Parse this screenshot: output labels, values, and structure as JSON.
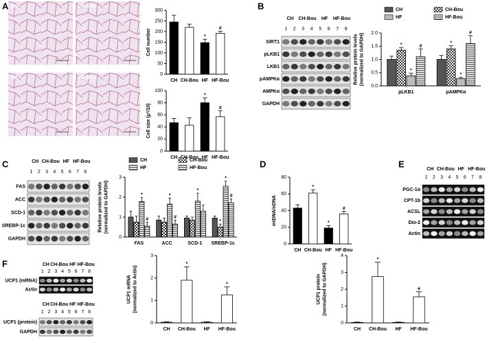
{
  "panels": [
    "A",
    "B",
    "C",
    "D",
    "E",
    "F"
  ],
  "micrographs": [
    "CH",
    "CH-Bou",
    "HF",
    "HF-Bou"
  ],
  "blots": [
    {
      "groups": [
        "CH",
        "CH-Bou",
        "HF",
        "HF-Bou"
      ],
      "lanes": [
        "1",
        "2",
        "3",
        "4",
        "5",
        "6",
        "7",
        "8"
      ],
      "rows": [
        "SIRT1",
        "pLKB1",
        "LKB1",
        "pAMPKα",
        "AMPKα",
        "GAPDH"
      ]
    },
    {
      "groups": [
        "CH",
        "CH-Bou",
        "HF",
        "HF-Bou"
      ],
      "lanes": [
        "1",
        "2",
        "3",
        "4",
        "5",
        "6",
        "7",
        "8"
      ],
      "rows": [
        "FAS",
        "ACC",
        "SCD-1",
        "SREBP-1c",
        "GAPDH"
      ]
    },
    {
      "groups": [
        "CH",
        "CH-Bou",
        "HF",
        "HF-Bou"
      ],
      "lanes": [
        "1",
        "2",
        "3",
        "4",
        "5",
        "6",
        "7",
        "8"
      ],
      "rows": [
        "PGC-1α",
        "CPT-1b",
        "ACSL",
        "Dio-2",
        "Actin"
      ]
    },
    {
      "groups": [
        "CH",
        "CH-Bou",
        "HF",
        "HF-Bou"
      ],
      "lanes": [
        "1",
        "2",
        "3",
        "4",
        "5",
        "6",
        "7",
        "8"
      ],
      "rows": [
        "UCP1 (mRNA)",
        "Actin"
      ]
    },
    {
      "groups": [
        "CH",
        "CH-Bou",
        "HF",
        "HF-Bou"
      ],
      "lanes": [
        "1",
        "2",
        "3",
        "4",
        "5",
        "6",
        "7",
        "8"
      ],
      "rows": [
        "UCP1 (protein)",
        "GAPDH"
      ]
    }
  ],
  "chart_data": [
    {
      "type": "bar",
      "ylabel": [
        "Cell number"
      ],
      "categories": [
        "CH",
        "CH-Bou",
        "HF",
        "HF-Bou"
      ],
      "values": [
        245,
        220,
        148,
        192
      ],
      "errors": [
        32,
        15,
        16,
        10
      ],
      "colors": [
        "#000000",
        "#ffffff",
        "#000000",
        "#ffffff"
      ],
      "annotations": [
        null,
        null,
        "*",
        "#"
      ],
      "ylim": [
        0,
        300
      ],
      "yticks": [
        0,
        50,
        100,
        150,
        200,
        250,
        300
      ]
    },
    {
      "type": "bar",
      "ylabel": [
        "Cell size (μ²/10)"
      ],
      "categories": [
        "CH",
        "CH-Bou",
        "HF",
        "HF-Bou"
      ],
      "values": [
        47,
        43,
        80,
        57
      ],
      "errors": [
        7,
        12,
        8,
        10
      ],
      "colors": [
        "#000000",
        "#ffffff",
        "#000000",
        "#ffffff"
      ],
      "annotations": [
        null,
        null,
        "*",
        "#"
      ],
      "ylim": [
        0,
        100
      ],
      "yticks": [
        0,
        20,
        40,
        60,
        80,
        100
      ]
    },
    {
      "type": "grouped_bar",
      "ylabel": [
        "Relative protein levels",
        "(normalized to GAPDH)"
      ],
      "categories": [
        "pLKB1",
        "pAMPKα"
      ],
      "series": [
        {
          "name": "CH",
          "color": "#555555",
          "pattern": null,
          "values": [
            1.0,
            1.0
          ],
          "errors": [
            0.12,
            0.15
          ],
          "annotations": [
            null,
            null
          ]
        },
        {
          "name": "CH-Bou",
          "color": "#444444",
          "pattern": "checker",
          "values": [
            1.35,
            1.4
          ],
          "errors": [
            0.1,
            0.12
          ],
          "annotations": [
            "*",
            "*"
          ]
        },
        {
          "name": "HF",
          "color": "#bbbbbb",
          "pattern": null,
          "values": [
            0.38,
            0.27
          ],
          "errors": [
            0.1,
            0.05
          ],
          "annotations": [
            "*",
            "*"
          ]
        },
        {
          "name": "HF-Bou",
          "color": "#888888",
          "pattern": "stripes",
          "values": [
            1.1,
            1.6
          ],
          "errors": [
            0.3,
            0.3
          ],
          "annotations": [
            "#",
            "#"
          ]
        }
      ],
      "ylim": [
        0,
        2
      ],
      "yticks": [
        {
          "value": 0,
          "label": "0.0"
        },
        {
          "value": 0.5,
          "label": "0.5"
        },
        {
          "value": 1,
          "label": "1.0"
        },
        {
          "value": 1.5,
          "label": "1.5"
        },
        {
          "value": 2,
          "label": "2.0"
        }
      ]
    },
    {
      "type": "grouped_bar",
      "ylabel": [
        "Relative protein levels",
        "(normalized to GAPDH)"
      ],
      "categories": [
        "FAS",
        "ACC",
        "SCD-1",
        "SREBP-1c"
      ],
      "series": [
        {
          "name": "CH",
          "color": "#555555",
          "pattern": null,
          "values": [
            1.0,
            0.85,
            0.95,
            0.95
          ],
          "errors": [
            0.3,
            0.2,
            0.1,
            0.1
          ],
          "annotations": [
            null,
            null,
            null,
            null
          ]
        },
        {
          "name": "CH-Bou",
          "color": "#444444",
          "pattern": "checker",
          "values": [
            0.75,
            0.75,
            0.85,
            0.5
          ],
          "errors": [
            0.3,
            0.2,
            0.15,
            0.15
          ],
          "annotations": [
            null,
            null,
            null,
            "*"
          ]
        },
        {
          "name": "HF",
          "color": "#bbbbbb",
          "pattern": "stripes",
          "values": [
            1.78,
            1.65,
            1.8,
            2.55
          ],
          "errors": [
            0.2,
            0.3,
            0.4,
            0.25
          ],
          "annotations": [
            "*",
            "*",
            "*",
            "*"
          ]
        },
        {
          "name": "HF-Bou",
          "color": "#888888",
          "pattern": "stripes",
          "values": [
            0.55,
            0.65,
            1.3,
            1.72
          ],
          "errors": [
            0.2,
            0.2,
            0.3,
            0.2
          ],
          "annotations": [
            "#",
            "#",
            null,
            "#"
          ]
        }
      ],
      "ylim": [
        0,
        3
      ],
      "yticks": [
        0,
        1,
        2,
        3
      ]
    },
    {
      "type": "bar",
      "ylabel": [
        "mtDNA/nDNA"
      ],
      "categories": [
        "CH",
        "CH-Bou",
        "HF",
        "HF-Bou"
      ],
      "values": [
        43,
        61,
        19,
        36
      ],
      "errors": [
        4,
        4,
        3,
        3
      ],
      "colors": [
        "#000000",
        "#ffffff",
        "#000000",
        "#ffffff"
      ],
      "annotations": [
        null,
        "*",
        "*",
        "#"
      ],
      "ylim": [
        0,
        80
      ],
      "yticks": [
        0,
        20,
        40,
        60,
        80
      ]
    },
    {
      "type": "bar",
      "ylabel": [
        "UCP1 mRNA",
        "(normalized to Actin)"
      ],
      "categories": [
        "CH",
        "CH-Bou",
        "HF",
        "HF-Bou"
      ],
      "values": [
        0.03,
        1.9,
        0.03,
        1.25
      ],
      "errors": [
        0.02,
        0.6,
        0.02,
        0.35
      ],
      "colors": [
        "#ffffff",
        "#ffffff",
        "#ffffff",
        "#ffffff"
      ],
      "annotations": [
        null,
        "*",
        null,
        "*"
      ],
      "ylim": [
        0,
        3
      ],
      "yticks": [
        0,
        1,
        2,
        3
      ]
    },
    {
      "type": "bar",
      "ylabel": [
        "UCP1 protein",
        "(normalized to GAPDH)"
      ],
      "categories": [
        "CH",
        "CH-Bou",
        "HF",
        "HF-Bou"
      ],
      "values": [
        0.03,
        2.75,
        0.03,
        1.55
      ],
      "errors": [
        0.02,
        0.85,
        0.02,
        0.3
      ],
      "colors": [
        "#ffffff",
        "#ffffff",
        "#ffffff",
        "#ffffff"
      ],
      "annotations": [
        null,
        "*",
        null,
        "#"
      ],
      "ylim": [
        0,
        4
      ],
      "yticks": [
        0,
        1,
        2,
        3,
        4
      ]
    }
  ]
}
